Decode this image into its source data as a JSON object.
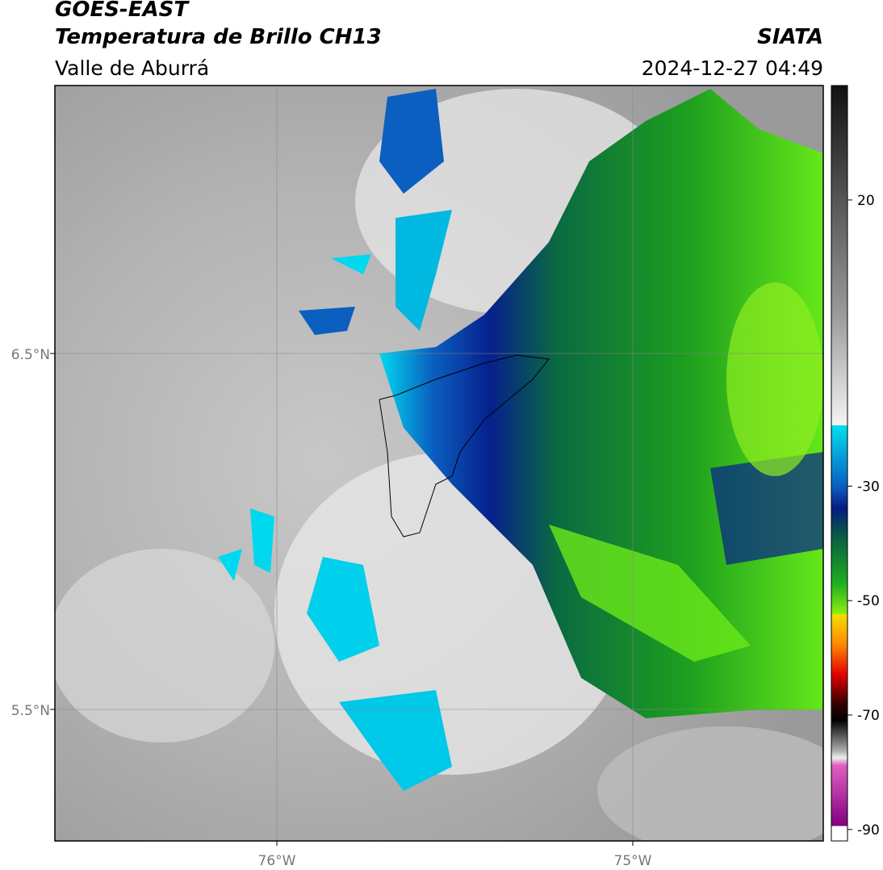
{
  "header": {
    "title": "GOES-EAST",
    "subtitle": "Temperatura de Brillo CH13",
    "region": "Valle de Aburrá",
    "source": "SIATA",
    "datetime": "2024-12-27 04:49"
  },
  "map": {
    "lat_labels": [
      "6.5°N",
      "5.5°N"
    ],
    "lon_labels": [
      "76°W",
      "75°W"
    ]
  },
  "colorbar": {
    "limits": [
      -92,
      40
    ],
    "ticks": [
      20,
      -30,
      -50,
      -70,
      -90
    ]
  }
}
